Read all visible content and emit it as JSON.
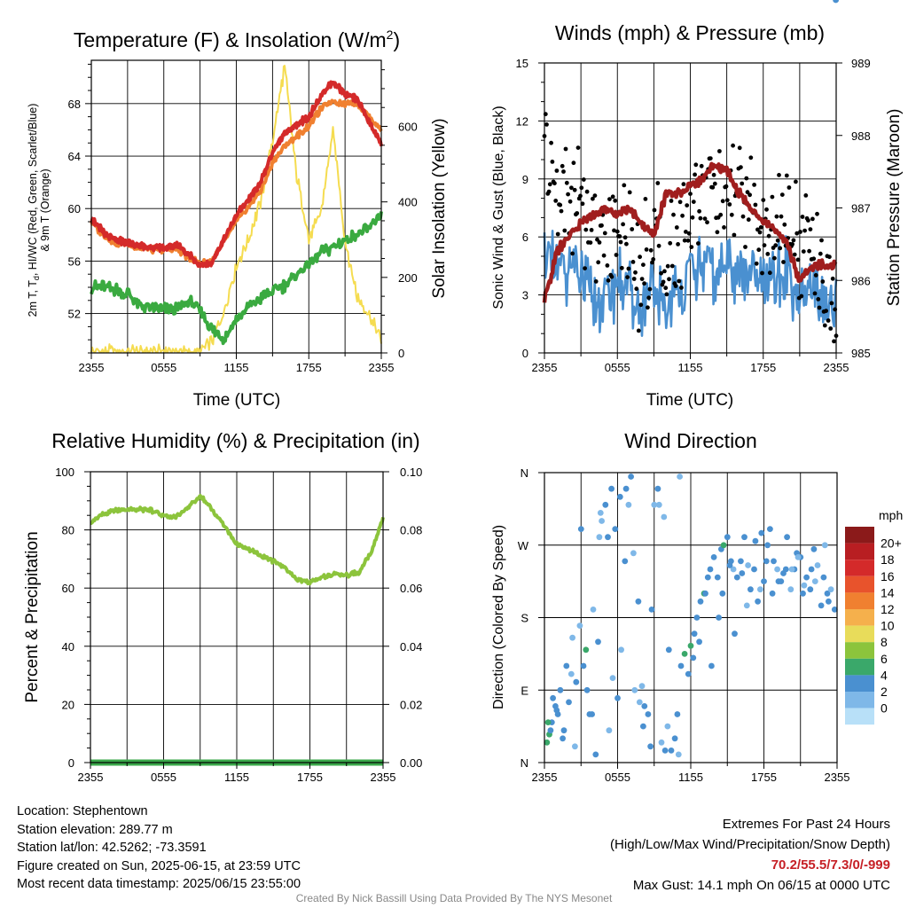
{
  "palette": {
    "red": "#d42a2a",
    "orange": "#f08030",
    "green": "#3aaa40",
    "yellow": "#f5dc50",
    "blue": "#4a90d0",
    "black": "#000000",
    "maroon": "#a01e1e",
    "lightgreen": "#8cc43c",
    "darkgreen": "#3aa84a"
  },
  "chart_data": [
    {
      "id": "temperature",
      "type": "line",
      "title": "Temperature (F) & Insolation (W/m²)",
      "title_main": "Temperature (F) & Insolation (W/m",
      "title_sup": "2",
      "title_end": ")",
      "xlabel": "Time (UTC)",
      "ylabel_left_line1": "2m T, T",
      "ylabel_left_sub": "d",
      "ylabel_left_line1b": ", HI/WC (Red, Green, Scarlet/Blue)",
      "ylabel_left_line2": "& 9m T (Orange)",
      "ylabel_right": "Solar Insolation (Yellow)",
      "xticks": [
        "2355",
        "0555",
        "1155",
        "1755",
        "2355"
      ],
      "yticks_left": [
        52,
        56,
        60,
        64,
        68
      ],
      "ylim_left": [
        49,
        71.3
      ],
      "yticks_right": [
        0,
        200,
        400,
        600
      ],
      "ylim_right": [
        0,
        775
      ],
      "x_hours": [
        0,
        1,
        2,
        3,
        4,
        5,
        6,
        7,
        8,
        9,
        10,
        11,
        12,
        13,
        14,
        15,
        16,
        17,
        18,
        19,
        20,
        21,
        22,
        23,
        24
      ],
      "series": [
        {
          "name": "2m T",
          "values": [
            59.3,
            58.2,
            57.6,
            57.4,
            57.2,
            57.1,
            57.0,
            57.3,
            56.6,
            55.7,
            55.9,
            57.8,
            59.5,
            60.7,
            62.0,
            64.3,
            65.8,
            66.4,
            67.0,
            68.6,
            69.7,
            68.7,
            68.4,
            66.6,
            65.0
          ]
        },
        {
          "name": "HI/WC",
          "values": [
            59.2,
            58.1,
            57.5,
            57.3,
            57.1,
            57.0,
            56.9,
            57.2,
            56.5,
            55.6,
            55.8,
            57.7,
            59.4,
            60.6,
            61.9,
            64.2,
            65.7,
            66.3,
            66.9,
            68.5,
            69.6,
            68.6,
            68.3,
            66.5,
            64.9
          ]
        },
        {
          "name": "9m T",
          "values": [
            59.0,
            57.9,
            57.4,
            57.2,
            57.0,
            56.9,
            56.8,
            57.0,
            56.3,
            55.8,
            56.0,
            57.5,
            59.0,
            60.1,
            61.3,
            63.5,
            64.8,
            65.5,
            66.3,
            67.6,
            68.2,
            68.0,
            68.0,
            67.0,
            66.0
          ]
        },
        {
          "name": "Td",
          "values": [
            54.0,
            54.1,
            53.8,
            53.5,
            52.7,
            52.4,
            52.3,
            52.3,
            53.0,
            52.3,
            50.8,
            50.1,
            51.5,
            52.5,
            53.2,
            53.6,
            54.2,
            55.0,
            55.8,
            56.6,
            57.1,
            57.6,
            58.0,
            58.4,
            59.7
          ]
        },
        {
          "name": "Solar Insolation",
          "values": [
            3,
            3,
            3,
            3,
            3,
            3,
            3,
            3,
            3,
            3,
            30,
            110,
            230,
            300,
            400,
            560,
            760,
            470,
            300,
            370,
            590,
            300,
            150,
            100,
            30
          ]
        }
      ]
    },
    {
      "id": "winds",
      "type": "line",
      "title": "Winds (mph) & Pressure (mb)",
      "xlabel": "Time (UTC)",
      "ylabel_left": "Sonic Wind & Gust (Blue, Black)",
      "ylabel_right": "Station Pressure (Maroon)",
      "xticks": [
        "2355",
        "0555",
        "1155",
        "1755",
        "2355"
      ],
      "yticks_left": [
        0,
        3,
        6,
        9,
        12,
        15
      ],
      "ylim_left": [
        0,
        15
      ],
      "yticks_right": [
        985,
        986,
        987,
        988,
        989
      ],
      "ylim_right": [
        985,
        989
      ],
      "x_hours": [
        0,
        1,
        2,
        3,
        4,
        5,
        6,
        7,
        8,
        9,
        10,
        11,
        12,
        13,
        14,
        15,
        16,
        17,
        18,
        19,
        20,
        21,
        22,
        23,
        24
      ],
      "series": [
        {
          "name": "Sonic Wind",
          "values": [
            5.5,
            4.0,
            4.5,
            3.8,
            2.5,
            2.7,
            3.8,
            3.2,
            2.0,
            3.0,
            2.4,
            3.0,
            4.3,
            4.2,
            4.0,
            4.6,
            4.3,
            3.8,
            3.4,
            3.8,
            4.2,
            2.6,
            3.7,
            2.5,
            2.0
          ]
        },
        {
          "name": "Gust",
          "values": [
            10.5,
            8.5,
            8.2,
            7.5,
            6.5,
            5.2,
            7.0,
            6.2,
            4.0,
            5.8,
            4.5,
            5.4,
            7.5,
            9.0,
            8.8,
            8.2,
            8.5,
            7.2,
            6.0,
            6.5,
            6.8,
            5.4,
            5.8,
            3.5,
            2.5
          ]
        },
        {
          "name": "Station Pressure",
          "values": [
            985.7,
            986.4,
            986.6,
            986.8,
            986.9,
            987.0,
            986.9,
            987.0,
            986.8,
            986.6,
            987.2,
            987.2,
            987.3,
            987.4,
            987.6,
            987.5,
            987.2,
            987.0,
            986.8,
            986.7,
            986.5,
            986.0,
            986.2,
            986.2,
            986.2
          ]
        }
      ]
    },
    {
      "id": "humidity",
      "type": "line",
      "title": "Relative Humidity (%) & Precipitation (in)",
      "ylabel_left": "Percent & Precipitation",
      "xticks": [
        "2355",
        "0555",
        "1155",
        "1755",
        "2355"
      ],
      "yticks_left": [
        0,
        20,
        40,
        60,
        80,
        100
      ],
      "ylim_left": [
        0,
        100
      ],
      "yticks_right": [
        "0.00",
        "0.02",
        "0.04",
        "0.06",
        "0.08",
        "0.10"
      ],
      "ylim_right": [
        0,
        0.1
      ],
      "x_hours": [
        0,
        1,
        2,
        3,
        4,
        5,
        6,
        7,
        8,
        9,
        10,
        11,
        12,
        13,
        14,
        15,
        16,
        17,
        18,
        19,
        20,
        21,
        22,
        23,
        24
      ],
      "series": [
        {
          "name": "Relative Humidity",
          "values": [
            82.5,
            85.5,
            86.8,
            86.9,
            87.0,
            86.8,
            84.7,
            84.5,
            88.0,
            91.6,
            86.9,
            81.2,
            75.0,
            73.5,
            71.0,
            69.3,
            66.6,
            62.9,
            62.0,
            63.5,
            64.9,
            64.6,
            65.3,
            72.0,
            84.0
          ]
        },
        {
          "name": "Precipitation",
          "values": [
            0,
            0,
            0,
            0,
            0,
            0,
            0,
            0,
            0,
            0,
            0,
            0,
            0,
            0,
            0,
            0,
            0,
            0,
            0,
            0,
            0,
            0,
            0,
            0,
            0
          ]
        }
      ]
    },
    {
      "id": "direction",
      "type": "scatter",
      "title": "Wind Direction",
      "ylabel": "Direction (Colored By Speed)",
      "xticks": [
        "2355",
        "0555",
        "1155",
        "1755",
        "2355"
      ],
      "yticks": [
        "N",
        "E",
        "S",
        "W",
        "N"
      ],
      "ylim": [
        0,
        360
      ],
      "legend_title": "mph",
      "legend_labels": [
        "20+",
        "18",
        "16",
        "14",
        "12",
        "10",
        "8",
        "6",
        "4",
        "2",
        "0"
      ],
      "legend_colors": [
        "#8b1a1a",
        "#b81e22",
        "#d42a2a",
        "#e8532c",
        "#f08030",
        "#f5b04c",
        "#e8dc5a",
        "#8cc43c",
        "#3aa86a",
        "#4a90d0",
        "#7fb8e8",
        "#b8e0f8"
      ],
      "legend_placement": "right",
      "x_hours": [
        0.2,
        0.4,
        0.6,
        0.9,
        1.1,
        1.3,
        1.6,
        1.8,
        2.0,
        2.3,
        2.6,
        2.9,
        3.2,
        3.4,
        3.7,
        4.0,
        4.2,
        4.5,
        4.7,
        5.0,
        5.3,
        5.5,
        5.8,
        6.0,
        6.3,
        6.6,
        6.9,
        7.1,
        7.4,
        7.7,
        8.0,
        8.2,
        8.5,
        8.7,
        9.0,
        9.3,
        9.6,
        9.9,
        10.1,
        10.4,
        10.7,
        11.0,
        11.2,
        11.5,
        11.8,
        12.0,
        12.3,
        12.5,
        12.8,
        13.1,
        13.4,
        13.6,
        13.9,
        14.2,
        14.5,
        14.7,
        15.0,
        15.3,
        15.5,
        15.8,
        16.1,
        16.4,
        16.6,
        16.9,
        17.2,
        17.5,
        17.7,
        18.0,
        18.3,
        18.5,
        18.8,
        19.1,
        19.4,
        19.6,
        19.9,
        20.2,
        20.5,
        20.7,
        21.0,
        21.3,
        21.5,
        21.8,
        22.1,
        22.4,
        22.7,
        22.9,
        23.2,
        23.5,
        23.8,
        0.3,
        0.7,
        1.5,
        2.2,
        3.0,
        3.9,
        4.6,
        5.2,
        6.2,
        7.3,
        8.1,
        9.4,
        10.2,
        11.1,
        12.2,
        13.2,
        14.3,
        15.2,
        16.2,
        17.3,
        18.2,
        19.2,
        20.3,
        21.2,
        22.2,
        23.3,
        0.5,
        1.0,
        2.5,
        3.5,
        4.4,
        5.6,
        6.7,
        7.8,
        8.8,
        9.8,
        10.9,
        12.7,
        13.7,
        14.6,
        15.6,
        16.7,
        17.8,
        18.7,
        19.8,
        20.8,
        21.9,
        23.0,
        23.9
      ],
      "directions": [
        25,
        35,
        50,
        70,
        60,
        90,
        40,
        120,
        75,
        155,
        100,
        170,
        120,
        140,
        60,
        190,
        10,
        280,
        300,
        320,
        40,
        340,
        290,
        80,
        140,
        250,
        320,
        355,
        90,
        200,
        95,
        70,
        60,
        20,
        320,
        340,
        25,
        15,
        45,
        15,
        30,
        10,
        120,
        135,
        110,
        145,
        160,
        180,
        200,
        210,
        230,
        240,
        255,
        230,
        265,
        270,
        280,
        250,
        240,
        230,
        250,
        280,
        195,
        215,
        240,
        200,
        215,
        225,
        270,
        290,
        250,
        240,
        225,
        235,
        280,
        215,
        240,
        260,
        255,
        220,
        230,
        215,
        265,
        245,
        195,
        230,
        210,
        215,
        190,
        50,
        80,
        30,
        110,
        290,
        60,
        310,
        280,
        330,
        260,
        45,
        320,
        140,
        355,
        130,
        210,
        180,
        245,
        235,
        275,
        250,
        225,
        240,
        210,
        225,
        200,
        40,
        65,
        20,
        90,
        150,
        105,
        340,
        75,
        190,
        305,
        60,
        150,
        120,
        210,
        160,
        245,
        285,
        210,
        240,
        255,
        240,
        270
      ],
      "speeds": [
        6,
        5,
        4,
        3,
        4,
        3,
        4,
        3,
        4,
        2,
        3,
        2,
        4,
        6,
        3,
        2,
        3,
        2,
        2,
        3,
        2,
        3,
        4,
        3,
        2,
        3,
        2,
        3,
        2,
        3,
        2,
        3,
        4,
        3,
        2,
        3,
        2,
        3,
        2,
        3,
        3,
        2,
        4,
        6,
        4,
        5,
        3,
        4,
        3,
        6,
        4,
        3,
        4,
        3,
        4,
        6,
        3,
        4,
        2,
        3,
        4,
        3,
        2,
        3,
        4,
        3,
        2,
        3,
        4,
        3,
        4,
        2,
        3,
        4,
        3,
        2,
        3,
        4,
        3,
        2,
        3,
        4,
        3,
        2,
        3,
        4,
        3,
        2,
        3,
        6,
        4,
        3,
        2,
        3,
        4,
        2,
        3,
        3,
        2,
        3,
        2,
        3,
        2,
        4,
        3,
        4,
        3,
        4,
        3,
        4,
        3,
        2,
        3,
        2,
        3,
        4,
        3,
        2,
        3,
        4,
        2,
        3,
        2,
        3,
        2,
        3,
        4,
        3,
        4,
        3,
        2,
        3,
        4,
        3,
        2,
        3,
        2,
        3,
        2
      ]
    }
  ],
  "info": {
    "location": "Location: Stephentown",
    "elevation": "Station elevation: 289.77 m",
    "latlon": "Station lat/lon: 42.5262; -73.3591",
    "created": "Figure created on Sun, 2025-06-15, at 23:59 UTC",
    "recent": "Most recent data timestamp: 2025/06/15 23:55:00",
    "extremes_title": "Extremes For Past 24 Hours",
    "extremes_legend": "(High/Low/Max Wind/Precipitation/Snow Depth)",
    "extremes_values": "70.2/55.5/7.3/0/-999",
    "max_gust": "Max Gust: 14.1 mph On 06/15 at 0000 UTC",
    "credit": "Created By Nick Bassill Using Data Provided By The NYS Mesonet"
  }
}
